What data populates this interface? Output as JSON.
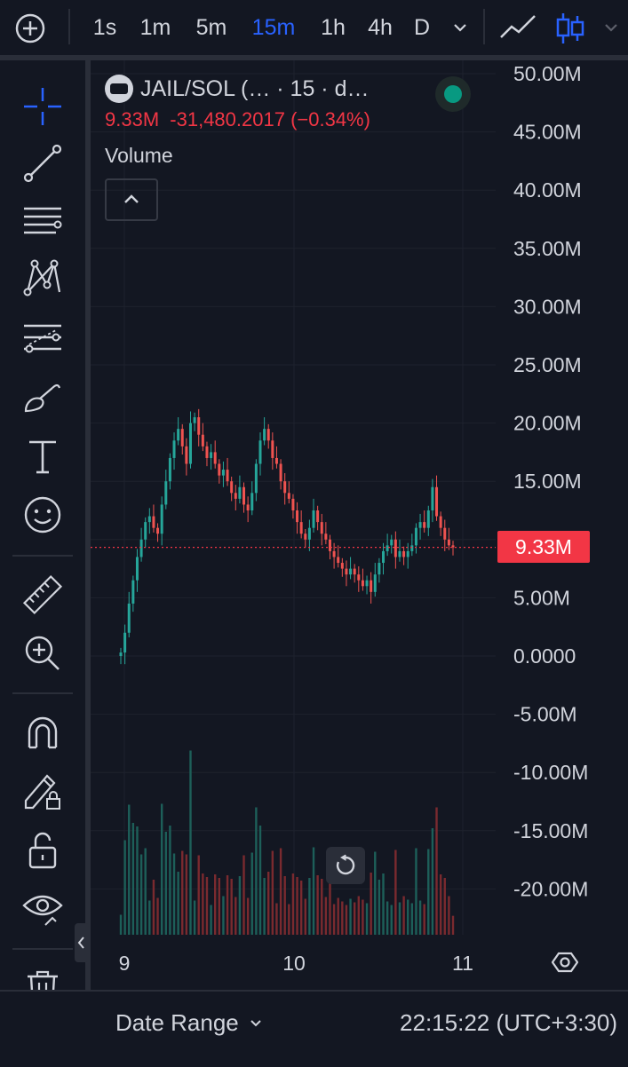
{
  "toolbar": {
    "timeframes": [
      "1s",
      "1m",
      "5m",
      "15m",
      "1h",
      "4h",
      "D"
    ],
    "active_timeframe": "15m"
  },
  "legend": {
    "symbol": "JAIL/SOL (… · 15 · d…",
    "last_value": "9.33M",
    "change": "-31,480.2017 (−0.34%)",
    "indicator": "Volume"
  },
  "price_axis": {
    "labels": [
      "50.00M",
      "45.00M",
      "40.00M",
      "35.00M",
      "30.00M",
      "25.00M",
      "20.00M",
      "15.00M",
      "10.00M",
      "5.00M",
      "0.0000",
      "-5.00M",
      "-10.00M",
      "-15.00M",
      "-20.00M"
    ],
    "current_value_label": "9.33M"
  },
  "time_axis": {
    "labels": [
      "9",
      "10",
      "11"
    ]
  },
  "bottom_bar": {
    "date_range_label": "Date Range",
    "clock": "22:15:22 (UTC+3:30)"
  },
  "colors": {
    "background": "#131722",
    "up": "#26a69a",
    "down": "#ef5350",
    "accent": "#2962ff",
    "price_label_bg": "#f23645"
  },
  "chart_data": {
    "type": "candlestick",
    "series": [
      {
        "name": "JAIL/SOL",
        "values": [
          0.3,
          2.0,
          4.5,
          6.5,
          8.5,
          10.0,
          11.5,
          12.0,
          11.0,
          10.5,
          13.0,
          15.0,
          17.0,
          18.5,
          19.5,
          18.0,
          16.5,
          20.0,
          20.5,
          19.0,
          18.0,
          17.0,
          17.5,
          16.5,
          15.5,
          16.0,
          15.0,
          14.0,
          13.5,
          14.5,
          13.0,
          12.5,
          14.0,
          16.5,
          18.5,
          19.5,
          18.5,
          17.0,
          16.5,
          15.0,
          14.0,
          13.5,
          12.5,
          11.5,
          10.5,
          10.0,
          11.0,
          12.5,
          11.5,
          10.5,
          10.0,
          9.0,
          8.5,
          8.0,
          7.5,
          7.0,
          7.5,
          7.0,
          6.5,
          6.0,
          6.5,
          5.5,
          7.0,
          8.0,
          9.0,
          9.5,
          10.0,
          8.5,
          9.0,
          8.5,
          9.0,
          9.5,
          11.0,
          11.5,
          11.0,
          12.5,
          14.5,
          12.0,
          11.0,
          10.0,
          9.5,
          9.33
        ]
      }
    ],
    "ylim": [
      -25,
      50
    ],
    "x_ticks": [
      "9",
      "10",
      "11"
    ],
    "last_value": 9.33
  }
}
